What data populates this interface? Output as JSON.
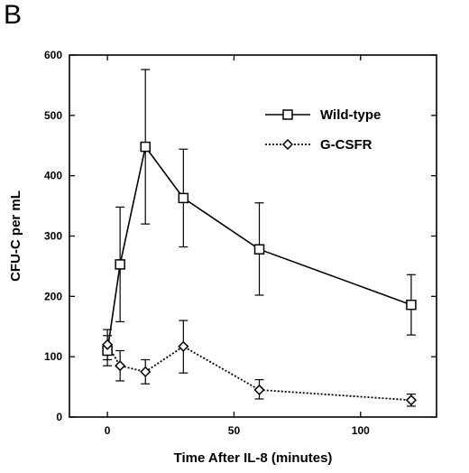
{
  "panel_label": "B",
  "chart_data": {
    "type": "line",
    "xlabel": "Time After IL-8 (minutes)",
    "ylabel": "CFU-C per mL",
    "xlim": [
      -15,
      130
    ],
    "ylim": [
      0,
      600
    ],
    "xticks": [
      0,
      50,
      100
    ],
    "yticks": [
      0,
      100,
      200,
      300,
      400,
      500,
      600
    ],
    "legend_position": "top-right",
    "grid": false,
    "series": [
      {
        "name": "Wild-type",
        "marker": "square",
        "line_style": "solid",
        "x": [
          0,
          5,
          15,
          30,
          60,
          120
        ],
        "y": [
          110,
          253,
          448,
          363,
          278,
          186
        ],
        "err_low": [
          85,
          158,
          320,
          282,
          202,
          136
        ],
        "err_high": [
          135,
          348,
          576,
          444,
          355,
          236
        ]
      },
      {
        "name": "G-CSFR",
        "marker": "diamond",
        "line_style": "dotted",
        "x": [
          0,
          5,
          15,
          30,
          60,
          120
        ],
        "y": [
          120,
          85,
          75,
          117,
          45,
          28
        ],
        "err_low": [
          95,
          60,
          55,
          73,
          30,
          18
        ],
        "err_high": [
          145,
          110,
          95,
          160,
          62,
          38
        ]
      }
    ]
  }
}
